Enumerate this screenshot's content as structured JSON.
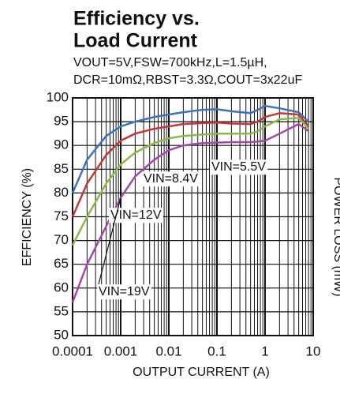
{
  "chart_data": {
    "type": "line",
    "title": [
      "Efficiency  vs.",
      "Load Current"
    ],
    "subtitle": [
      "VOUT=5V,FSW=700kHz,L=1.5µH,",
      "DCR=10mΩ,RBST=3.3Ω,COUT=3x22uF"
    ],
    "xlabel": "OUTPUT CURRENT (A)",
    "ylabel": "EFFICIENCY (%)",
    "y2label": "POWER LOSS (mW)",
    "xscale": "log",
    "grid": true,
    "xlim": [
      0.0001,
      10
    ],
    "xticks": [
      0.0001,
      0.001,
      0.01,
      0.1,
      1,
      10
    ],
    "xminorticks": [
      0.0002,
      0.0003,
      0.0004,
      0.0005,
      0.0006,
      0.0007,
      0.0008,
      0.0009,
      0.002,
      0.003,
      0.004,
      0.005,
      0.006,
      0.007,
      0.008,
      0.009,
      0.02,
      0.03,
      0.04,
      0.05,
      0.06,
      0.07,
      0.08,
      0.09,
      0.2,
      0.3,
      0.4,
      0.5,
      0.6,
      0.7,
      0.8,
      0.9,
      2,
      3,
      4,
      5,
      6,
      7,
      8,
      9
    ],
    "ylim": [
      50,
      100
    ],
    "yticks": [
      50,
      55,
      60,
      65,
      70,
      75,
      80,
      85,
      90,
      95,
      100
    ],
    "x": [
      0.0001,
      0.0002,
      0.0005,
      0.001,
      0.002,
      0.005,
      0.01,
      0.02,
      0.05,
      0.1,
      0.2,
      0.5,
      0.7,
      1,
      2,
      5,
      8
    ],
    "series": [
      {
        "name": "VIN=5.5V",
        "color": "#3d74b8",
        "values": [
          80,
          87,
          92,
          94,
          95,
          96,
          96.5,
          97,
          97.5,
          97.6,
          97.2,
          96.8,
          97.5,
          98.3,
          97.8,
          97,
          95
        ]
      },
      {
        "name": "VIN=8.4V",
        "color": "#c0393b",
        "values": [
          75,
          82,
          88,
          91,
          92.5,
          93.5,
          94,
          94.5,
          94.7,
          94.8,
          94.6,
          94.5,
          95,
          96,
          96.8,
          96.5,
          94
        ]
      },
      {
        "name": "VIN=12V",
        "color": "#8cb84a",
        "values": [
          69,
          75,
          82,
          86,
          88.5,
          90.5,
          91.5,
          92,
          92.3,
          92.5,
          92.5,
          92.5,
          93,
          94,
          95.5,
          95.8,
          93.5
        ]
      },
      {
        "name": "VIN=19V",
        "color": "#a347a8",
        "values": [
          57,
          65,
          73,
          79,
          83.5,
          87,
          89,
          90,
          90.5,
          90.6,
          90.7,
          90.7,
          90.8,
          91,
          92.5,
          94.5,
          93
        ]
      }
    ]
  }
}
